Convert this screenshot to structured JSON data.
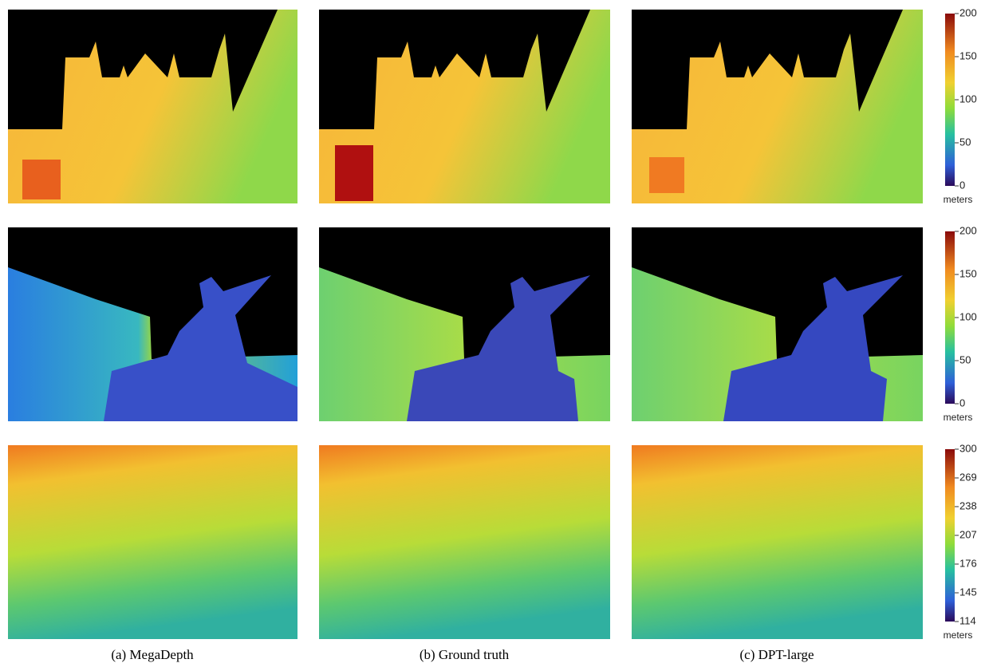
{
  "panels": {
    "captions": [
      "(a) MegaDepth",
      "(b) Ground truth",
      "(c) DPT-large"
    ]
  },
  "colorbars": [
    {
      "ticks": [
        0,
        50,
        100,
        150,
        200
      ],
      "unit": "meters"
    },
    {
      "ticks": [
        0,
        50,
        100,
        150,
        200
      ],
      "unit": "meters"
    },
    {
      "ticks": [
        114,
        145,
        176,
        207,
        238,
        269,
        300
      ],
      "unit": "meters"
    }
  ]
}
